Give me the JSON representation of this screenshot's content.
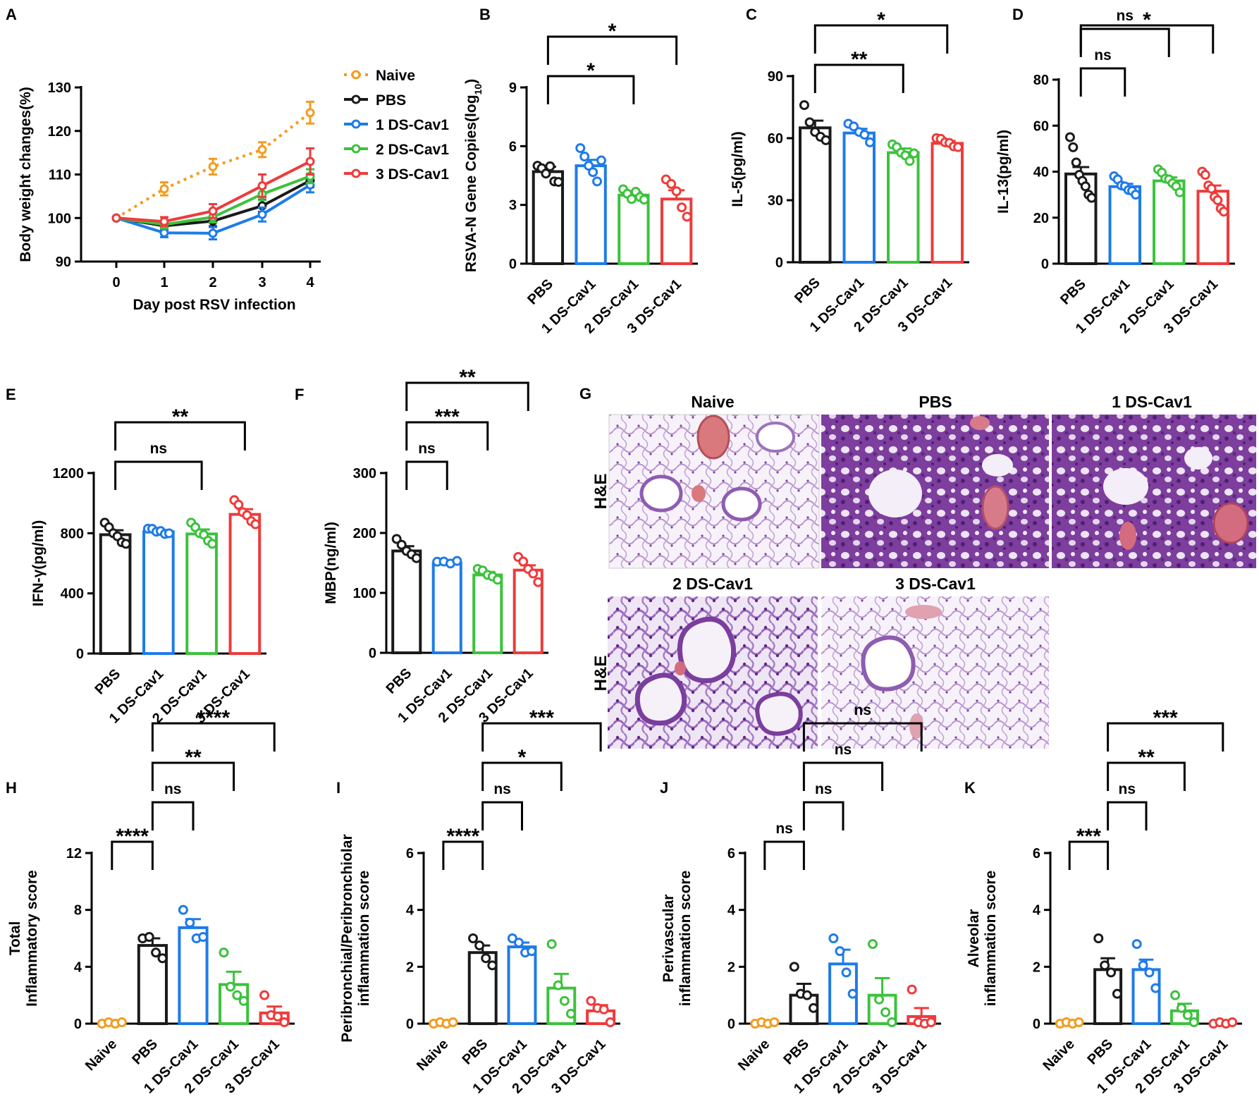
{
  "colors": {
    "naive": "#F39C1E",
    "pbs": "#1A1A1A",
    "ds1": "#1E7BE8",
    "ds2": "#3CC23C",
    "ds3": "#EE3B3B"
  },
  "chart_data": [
    {
      "id": "A",
      "type": "line",
      "letter": "A",
      "xlabel": "Day post RSV infection",
      "ylabel": "Body weight changes(%)",
      "x": [
        0,
        1,
        2,
        3,
        4
      ],
      "ylim": [
        90,
        130
      ],
      "yticks": [
        "90",
        "100",
        "110",
        "120",
        "130"
      ],
      "xticks": [
        "0",
        "1",
        "2",
        "3",
        "4"
      ],
      "series": [
        {
          "name": "Naive",
          "color_key": "naive",
          "dashed": true,
          "values": [
            100,
            106.7,
            111.8,
            115.7,
            124.2
          ],
          "errors": [
            0,
            1.5,
            1.8,
            1.7,
            2.5
          ]
        },
        {
          "name": "PBS",
          "color_key": "pbs",
          "dashed": false,
          "values": [
            100,
            98.2,
            99.3,
            102.8,
            108.6
          ],
          "errors": [
            0,
            0.8,
            1.2,
            1.4,
            1.5
          ]
        },
        {
          "name": "1 DS-Cav1",
          "color_key": "ds1",
          "dashed": false,
          "values": [
            100,
            96.6,
            96.5,
            100.8,
            107.6
          ],
          "errors": [
            0,
            1.0,
            1.4,
            1.6,
            1.7
          ]
        },
        {
          "name": "2 DS-Cav1",
          "color_key": "ds2",
          "dashed": false,
          "values": [
            100,
            98.5,
            100.2,
            105.5,
            109.6
          ],
          "errors": [
            0,
            0.9,
            1.2,
            1.4,
            1.6
          ]
        },
        {
          "name": "3 DS-Cav1",
          "color_key": "ds3",
          "dashed": false,
          "values": [
            100,
            99.2,
            101.6,
            107.4,
            113.0
          ],
          "errors": [
            0,
            1.0,
            1.6,
            2.6,
            3.0
          ]
        }
      ]
    },
    {
      "id": "B",
      "type": "bar",
      "letter": "B",
      "ylabel": "RSVA-N Gene Copies(log10)",
      "ylabel_main": "RSVA-N Gene Copies(log",
      "ylabel_sub": "10",
      "ylabel_end": ")",
      "categories": [
        "PBS",
        "1 DS-Cav1",
        "2 DS-Cav1",
        "3 DS-Cav1"
      ],
      "color_keys": [
        "pbs",
        "ds1",
        "ds2",
        "ds3"
      ],
      "values": [
        4.7,
        5.0,
        3.5,
        3.3
      ],
      "errors": [
        0.25,
        0.3,
        0.15,
        0.45
      ],
      "points": [
        [
          5.0,
          4.8,
          4.6,
          4.9,
          4.2,
          4.1
        ],
        [
          5.9,
          5.4,
          5.0,
          4.6,
          4.2,
          5.2
        ],
        [
          3.8,
          3.5,
          3.3,
          3.6,
          3.4,
          3.2
        ],
        [
          4.3,
          4.0,
          3.7,
          2.8,
          2.4
        ]
      ],
      "ylim": [
        0,
        9
      ],
      "yticks": [
        "0",
        "3",
        "6",
        "9"
      ],
      "sig": [
        {
          "from": 0,
          "to": 2,
          "label": "*"
        },
        {
          "from": 0,
          "to": 3,
          "label": "*"
        }
      ]
    },
    {
      "id": "C",
      "type": "bar",
      "letter": "C",
      "ylabel": "IL-5(pg/ml)",
      "categories": [
        "PBS",
        "1 DS-Cav1",
        "2 DS-Cav1",
        "3 DS-Cav1"
      ],
      "color_keys": [
        "pbs",
        "ds1",
        "ds2",
        "ds3"
      ],
      "values": [
        65,
        62.5,
        53,
        57.5
      ],
      "errors": [
        3.5,
        2,
        2,
        1.2
      ],
      "points": [
        [
          76,
          67,
          63,
          60,
          59
        ],
        [
          67,
          65,
          63,
          61,
          58
        ],
        [
          57,
          55,
          53,
          51,
          49,
          52
        ],
        [
          60,
          59,
          58,
          57,
          56,
          55
        ]
      ],
      "ylim": [
        0,
        90
      ],
      "yticks": [
        "0",
        "30",
        "60",
        "90"
      ],
      "sig": [
        {
          "from": 0,
          "to": 2,
          "label": "**"
        },
        {
          "from": 0,
          "to": 3,
          "label": "*"
        }
      ]
    },
    {
      "id": "D",
      "type": "bar",
      "letter": "D",
      "ylabel": "IL-13(pg/ml)",
      "categories": [
        "PBS",
        "1 DS-Cav1",
        "2 DS-Cav1",
        "3 DS-Cav1"
      ],
      "color_keys": [
        "pbs",
        "ds1",
        "ds2",
        "ds3"
      ],
      "values": [
        39,
        33.5,
        36,
        31.5
      ],
      "errors": [
        3,
        1.2,
        1.5,
        2.5
      ],
      "points": [
        [
          55,
          50,
          44,
          38,
          36,
          33,
          30,
          28
        ],
        [
          38,
          36,
          34,
          33,
          32,
          31,
          30
        ],
        [
          41,
          39,
          37,
          36,
          35,
          33,
          31
        ],
        [
          40,
          38,
          34,
          32,
          29,
          27,
          24,
          22
        ]
      ],
      "ylim": [
        0,
        80
      ],
      "yticks": [
        "0",
        "20",
        "40",
        "60",
        "80"
      ],
      "sig": [
        {
          "from": 0,
          "to": 1,
          "label": "ns"
        },
        {
          "from": 0,
          "to": 2,
          "label": "ns"
        },
        {
          "from": 0,
          "to": 3,
          "label": "*"
        }
      ]
    },
    {
      "id": "E",
      "type": "bar",
      "letter": "E",
      "ylabel": "IFN-γ(pg/ml)",
      "categories": [
        "PBS",
        "1 DS-Cav1",
        "2 DS-Cav1",
        "3 DS-Cav1"
      ],
      "color_keys": [
        "pbs",
        "ds1",
        "ds2",
        "ds3"
      ],
      "values": [
        790,
        810,
        795,
        925
      ],
      "errors": [
        30,
        12,
        30,
        35
      ],
      "points": [
        [
          870,
          830,
          800,
          770,
          740,
          720
        ],
        [
          830,
          820,
          810,
          805,
          795,
          790
        ],
        [
          870,
          830,
          800,
          780,
          750,
          720
        ],
        [
          1020,
          980,
          940,
          910,
          880,
          850
        ]
      ],
      "ylim": [
        0,
        1200
      ],
      "yticks": [
        "0",
        "400",
        "800",
        "1200"
      ],
      "sig": [
        {
          "from": 0,
          "to": 2,
          "label": "ns"
        },
        {
          "from": 0,
          "to": 3,
          "label": "**"
        }
      ]
    },
    {
      "id": "F",
      "type": "bar",
      "letter": "F",
      "ylabel": "MBP(ng/ml)",
      "categories": [
        "PBS",
        "1 DS-Cav1",
        "2 DS-Cav1",
        "3 DS-Cav1"
      ],
      "color_keys": [
        "pbs",
        "ds1",
        "ds2",
        "ds3"
      ],
      "values": [
        170,
        150,
        130,
        138
      ],
      "errors": [
        8,
        2,
        5,
        8
      ],
      "points": [
        [
          190,
          178,
          170,
          162,
          158
        ],
        [
          152,
          150,
          149,
          151
        ],
        [
          140,
          135,
          130,
          125,
          122
        ],
        [
          160,
          150,
          140,
          130,
          118
        ]
      ],
      "ylim": [
        0,
        300
      ],
      "yticks": [
        "0",
        "100",
        "200",
        "300"
      ],
      "sig": [
        {
          "from": 0,
          "to": 1,
          "label": "ns"
        },
        {
          "from": 0,
          "to": 2,
          "label": "***"
        },
        {
          "from": 0,
          "to": 3,
          "label": "**"
        }
      ]
    },
    {
      "id": "H",
      "type": "bar",
      "letter": "H",
      "ylabel_lines": [
        "Total",
        "Inflammatory score"
      ],
      "categories": [
        "Naive",
        "PBS",
        "1 DS-Cav1",
        "2 DS-Cav1",
        "3 DS-Cav1"
      ],
      "color_keys": [
        "naive",
        "pbs",
        "ds1",
        "ds2",
        "ds3"
      ],
      "values": [
        0,
        5.5,
        6.75,
        2.75,
        0.75
      ],
      "errors": [
        0,
        0.5,
        0.6,
        0.9,
        0.45
      ],
      "points": [
        [
          0,
          0,
          0,
          0
        ],
        [
          6,
          6,
          5,
          4.5
        ],
        [
          8,
          7,
          6,
          6
        ],
        [
          5,
          2.5,
          2,
          1.5
        ],
        [
          2,
          0.5,
          0.5,
          0
        ]
      ],
      "ylim": [
        0,
        12
      ],
      "yticks": [
        "0",
        "4",
        "8",
        "12"
      ],
      "sig": [
        {
          "from": 0,
          "to": 1,
          "label": "****"
        },
        {
          "from": 1,
          "to": 2,
          "label": "ns"
        },
        {
          "from": 1,
          "to": 3,
          "label": "**"
        },
        {
          "from": 1,
          "to": 4,
          "label": "****"
        }
      ]
    },
    {
      "id": "I",
      "type": "bar",
      "letter": "I",
      "ylabel_lines": [
        "Peribronchial/Peribronchiolar",
        "inflammation score"
      ],
      "categories": [
        "Naive",
        "PBS",
        "1 DS-Cav1",
        "2 DS-Cav1",
        "3 DS-Cav1"
      ],
      "color_keys": [
        "naive",
        "pbs",
        "ds1",
        "ds2",
        "ds3"
      ],
      "values": [
        0,
        2.5,
        2.7,
        1.25,
        0.45
      ],
      "errors": [
        0,
        0.25,
        0.15,
        0.5,
        0.2
      ],
      "points": [
        [
          0,
          0,
          0,
          0
        ],
        [
          3,
          2.7,
          2.3,
          2
        ],
        [
          3,
          2.8,
          2.5,
          2.5
        ],
        [
          2.8,
          1.3,
          0.8,
          0.3
        ],
        [
          0.8,
          0.5,
          0.5,
          0
        ]
      ],
      "ylim": [
        0,
        6
      ],
      "yticks": [
        "0",
        "2",
        "4",
        "6"
      ],
      "sig": [
        {
          "from": 0,
          "to": 1,
          "label": "****"
        },
        {
          "from": 1,
          "to": 2,
          "label": "ns"
        },
        {
          "from": 1,
          "to": 3,
          "label": "*"
        },
        {
          "from": 1,
          "to": 4,
          "label": "***"
        }
      ]
    },
    {
      "id": "J",
      "type": "bar",
      "letter": "J",
      "ylabel_lines": [
        "Perivascular",
        "inflammation score"
      ],
      "categories": [
        "Naive",
        "PBS",
        "1 DS-Cav1",
        "2 DS-Cav1",
        "3 DS-Cav1"
      ],
      "color_keys": [
        "naive",
        "pbs",
        "ds1",
        "ds2",
        "ds3"
      ],
      "values": [
        0,
        1.0,
        2.1,
        1.0,
        0.25
      ],
      "errors": [
        0,
        0.4,
        0.5,
        0.6,
        0.3
      ],
      "points": [
        [
          0,
          0,
          0,
          0
        ],
        [
          2,
          1,
          1,
          0.5
        ],
        [
          3,
          2.5,
          1.8,
          1
        ],
        [
          2.8,
          0.8,
          0.4,
          0
        ],
        [
          1.2,
          0,
          0,
          0
        ]
      ],
      "ylim": [
        0,
        6
      ],
      "yticks": [
        "0",
        "2",
        "4",
        "6"
      ],
      "sig": [
        {
          "from": 0,
          "to": 1,
          "label": "ns"
        },
        {
          "from": 1,
          "to": 2,
          "label": "ns"
        },
        {
          "from": 1,
          "to": 3,
          "label": "ns"
        },
        {
          "from": 1,
          "to": 4,
          "label": "ns"
        }
      ]
    },
    {
      "id": "K",
      "type": "bar",
      "letter": "K",
      "ylabel_lines": [
        "Alveolar",
        "inflammation score"
      ],
      "categories": [
        "Naive",
        "PBS",
        "1 DS-Cav1",
        "2 DS-Cav1",
        "3 DS-Cav1"
      ],
      "color_keys": [
        "naive",
        "pbs",
        "ds1",
        "ds2",
        "ds3"
      ],
      "values": [
        0,
        1.9,
        1.9,
        0.45,
        0
      ],
      "errors": [
        0,
        0.4,
        0.35,
        0.25,
        0
      ],
      "points": [
        [
          0,
          0,
          0,
          0
        ],
        [
          3,
          2,
          1.8,
          1
        ],
        [
          2.8,
          2,
          1.8,
          1.2
        ],
        [
          1,
          0.5,
          0.3,
          0
        ],
        [
          0,
          0,
          0,
          0
        ]
      ],
      "ylim": [
        0,
        6
      ],
      "yticks": [
        "0",
        "2",
        "4",
        "6"
      ],
      "sig": [
        {
          "from": 0,
          "to": 1,
          "label": "***"
        },
        {
          "from": 1,
          "to": 2,
          "label": "ns"
        },
        {
          "from": 1,
          "to": 3,
          "label": "**"
        },
        {
          "from": 1,
          "to": 4,
          "label": "***"
        }
      ]
    }
  ],
  "histology": {
    "letter": "G",
    "stain_label": "H&E",
    "panels": [
      {
        "title": "Naive"
      },
      {
        "title": "PBS"
      },
      {
        "title": "1 DS-Cav1"
      },
      {
        "title": "2 DS-Cav1"
      },
      {
        "title": "3 DS-Cav1"
      }
    ]
  }
}
